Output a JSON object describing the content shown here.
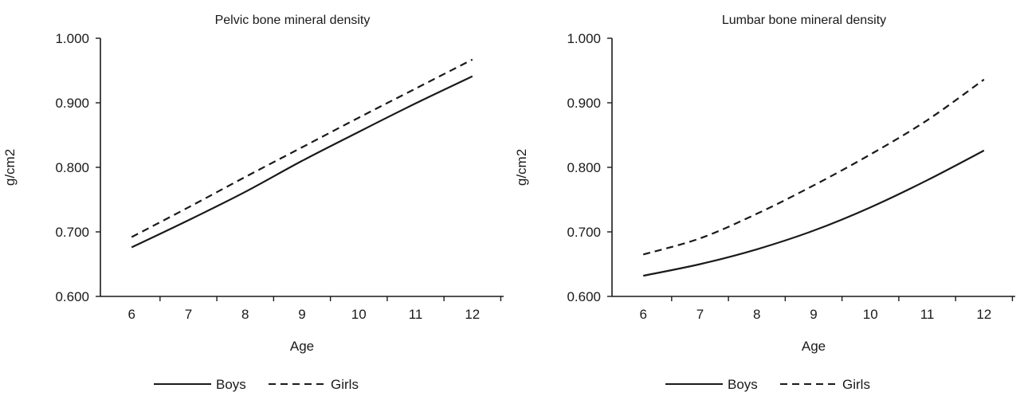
{
  "chart_data": [
    {
      "type": "line",
      "title": "Pelvic bone mineral density",
      "xlabel": "Age",
      "ylabel": "g/cm2",
      "xlim": [
        5.45,
        12.55
      ],
      "ylim": [
        0.6,
        1.0
      ],
      "x_ticks": [
        6,
        7,
        8,
        9,
        10,
        11,
        12
      ],
      "y_ticks": [
        "0.600",
        "0.700",
        "0.800",
        "0.900",
        "1.000"
      ],
      "grid": false,
      "legend_position": "bottom",
      "series": [
        {
          "name": "Boys",
          "line_style": "solid",
          "x": [
            6,
            7,
            8,
            9,
            10,
            11,
            12
          ],
          "y": [
            0.676,
            0.718,
            0.762,
            0.81,
            0.855,
            0.899,
            0.941
          ]
        },
        {
          "name": "Girls",
          "line_style": "dashed",
          "x": [
            6,
            7,
            8,
            9,
            10,
            11,
            12
          ],
          "y": [
            0.692,
            0.738,
            0.785,
            0.831,
            0.877,
            0.922,
            0.967
          ]
        }
      ]
    },
    {
      "type": "line",
      "title": "Lumbar bone mineral density",
      "xlabel": "Age",
      "ylabel": "g/cm2",
      "xlim": [
        5.45,
        12.55
      ],
      "ylim": [
        0.6,
        1.0
      ],
      "x_ticks": [
        6,
        7,
        8,
        9,
        10,
        11,
        12
      ],
      "y_ticks": [
        "0.600",
        "0.700",
        "0.800",
        "0.900",
        "1.000"
      ],
      "grid": false,
      "legend_position": "bottom",
      "series": [
        {
          "name": "Boys",
          "line_style": "solid",
          "x": [
            6,
            7,
            8,
            9,
            10,
            11,
            12
          ],
          "y": [
            0.632,
            0.65,
            0.673,
            0.702,
            0.738,
            0.78,
            0.826
          ]
        },
        {
          "name": "Girls",
          "line_style": "dashed",
          "x": [
            6,
            7,
            8,
            9,
            10,
            11,
            12
          ],
          "y": [
            0.665,
            0.69,
            0.728,
            0.772,
            0.82,
            0.873,
            0.936
          ]
        }
      ]
    }
  ]
}
